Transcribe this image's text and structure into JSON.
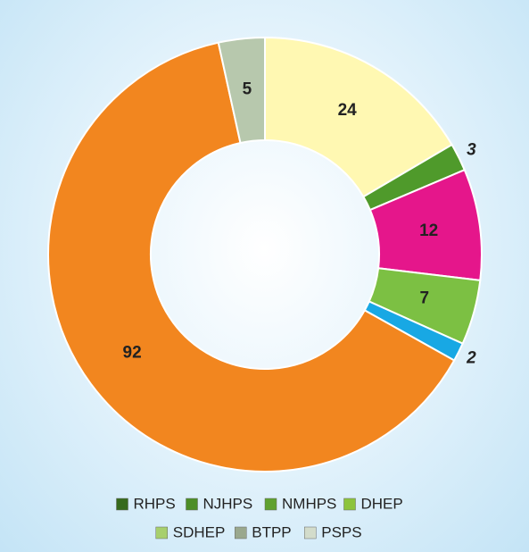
{
  "chart_data": {
    "type": "donut",
    "categories": [
      "RHPS",
      "NJHPS",
      "NMHPS",
      "DHEP",
      "SDHEP",
      "BTPP",
      "PSPS"
    ],
    "values": [
      24,
      3,
      12,
      7,
      2,
      92,
      5
    ],
    "colors": [
      "#fff8b2",
      "#4f9a2b",
      "#e5168b",
      "#7cc043",
      "#18a8e4",
      "#f2861f",
      "#b7c8ad"
    ],
    "legend_colors": [
      "#376a1d",
      "#4d8e27",
      "#5fa12f",
      "#8dc43d",
      "#a7cf6d",
      "#9aa88e",
      "#d3dccb"
    ]
  }
}
